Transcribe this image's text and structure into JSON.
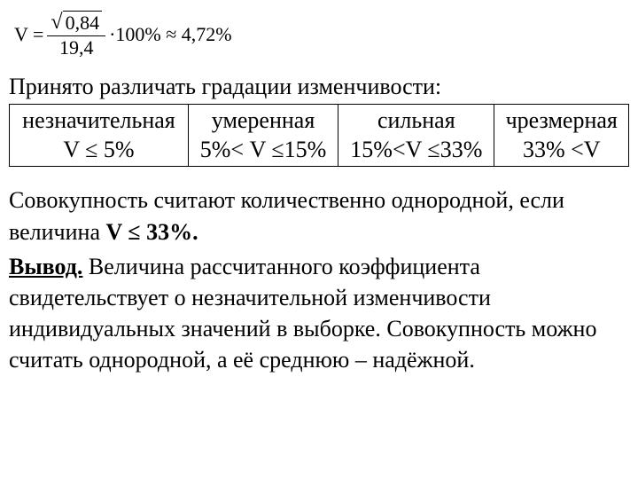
{
  "formula": {
    "lhs": "V =",
    "sqrt_arg": "0,84",
    "denom": "19,4",
    "mult": "·100% ≈ 4,72%"
  },
  "intro": "Принято различать градации изменчивости:",
  "table": {
    "cells": [
      [
        "незначительная",
        "умеренная",
        "сильная",
        "чрезмерная"
      ],
      [
        "V ≤ 5%",
        "5%< V ≤15%",
        "15%<V ≤33%",
        "33% <V"
      ]
    ]
  },
  "para1_a": "Совокупность считают количественно однородной, если величина ",
  "para1_b_bold": "V ≤ 33%.",
  "para2_lead_bold_uline": "Вывод.",
  "para2_rest": " Величина рассчитанного коэффициента свидетельствует о незначительной изменчивости индивидуальных значений в выборке. Совокупность можно считать однородной, а её среднюю – надёжной."
}
